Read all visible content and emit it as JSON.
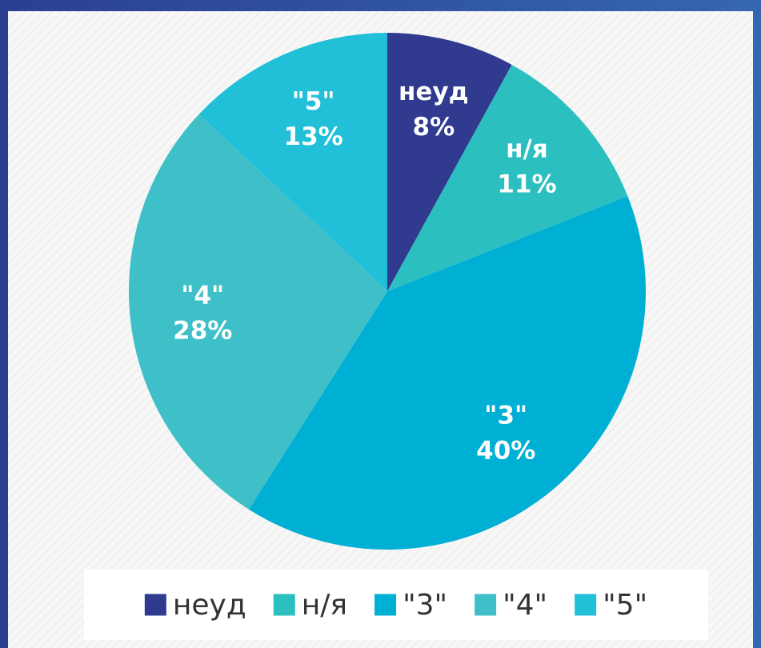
{
  "chart_data": {
    "type": "pie",
    "categories": [
      "неуд",
      "н/я",
      "\"3\"",
      "\"4\"",
      "\"5\""
    ],
    "values": [
      8,
      11,
      40,
      28,
      13
    ],
    "value_labels": [
      "8%",
      "11%",
      "40%",
      "28%",
      "13%"
    ],
    "colors": [
      "#303a8f",
      "#2bbfbf",
      "#00b0d4",
      "#3fc0c8",
      "#22c0d8"
    ],
    "legend": "bottom"
  }
}
